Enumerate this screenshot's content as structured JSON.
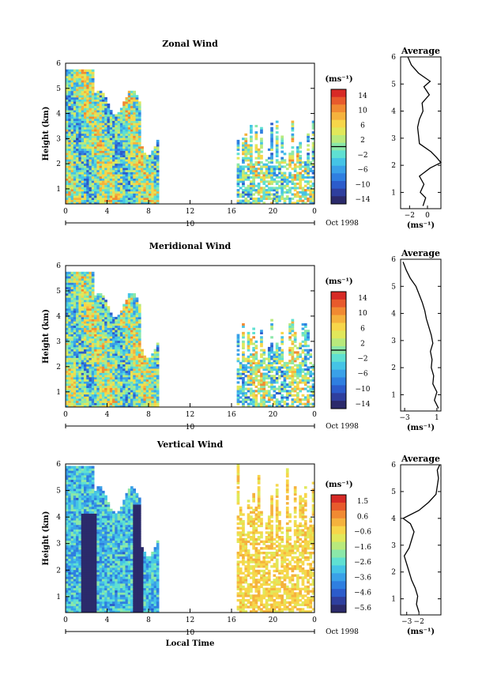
{
  "figure": {
    "date_label": "Oct 1998",
    "xlabel": "Local Time"
  },
  "chart_data": [
    {
      "type": "heatmap",
      "title": "Zonal Wind",
      "ylabel": "Height (km)",
      "xlabel": "",
      "x_ticks": [
        "0",
        "4",
        "8",
        "12",
        "16",
        "20",
        "0"
      ],
      "x_range": [
        0,
        24
      ],
      "y_ticks": [
        "1",
        "2",
        "3",
        "4",
        "5",
        "6"
      ],
      "y_range": [
        0.4,
        6.0
      ],
      "day_label": "10",
      "colorbar": {
        "unit": "(ms⁻¹)",
        "ticks": [
          "14",
          "10",
          "6",
          "2",
          "−2",
          "−6",
          "−10",
          "−14"
        ],
        "range": [
          -16,
          16
        ],
        "zero_line": 0
      },
      "data_windows": [
        {
          "x": [
            0,
            9
          ],
          "y": [
            0.4,
            5.8
          ]
        },
        {
          "x": [
            16.5,
            24
          ],
          "y": [
            0.4,
            3.7
          ]
        }
      ],
      "profile": {
        "title": "Average",
        "xlabel": "(ms⁻¹)",
        "x_ticks": [
          "−2",
          "0"
        ],
        "x_range": [
          -3,
          1.5
        ],
        "heights": [
          0.5,
          0.8,
          1.0,
          1.3,
          1.6,
          1.9,
          2.1,
          2.3,
          2.5,
          2.8,
          3.1,
          3.4,
          3.7,
          4.0,
          4.3,
          4.6,
          4.9,
          5.1,
          5.4,
          5.7,
          6.0
        ],
        "values": [
          -0.5,
          -0.2,
          -0.8,
          -0.4,
          -0.9,
          0.3,
          1.5,
          1.0,
          0.4,
          -0.9,
          -1.0,
          -1.1,
          -0.9,
          -0.5,
          -0.6,
          0.2,
          -0.4,
          0.3,
          -1.0,
          -1.8,
          -2.2
        ]
      }
    },
    {
      "type": "heatmap",
      "title": "Meridional Wind",
      "ylabel": "Height (km)",
      "xlabel": "",
      "x_ticks": [
        "0",
        "4",
        "8",
        "12",
        "16",
        "20",
        "0"
      ],
      "x_range": [
        0,
        24
      ],
      "y_ticks": [
        "1",
        "2",
        "3",
        "4",
        "5",
        "6"
      ],
      "y_range": [
        0.4,
        6.0
      ],
      "day_label": "10",
      "colorbar": {
        "unit": "(ms⁻¹)",
        "ticks": [
          "14",
          "10",
          "6",
          "2",
          "−2",
          "−6",
          "−10",
          "−14"
        ],
        "range": [
          -16,
          16
        ],
        "zero_line": 0
      },
      "data_windows": [
        {
          "x": [
            0,
            9
          ],
          "y": [
            0.4,
            5.8
          ]
        },
        {
          "x": [
            16.5,
            24
          ],
          "y": [
            0.4,
            4.0
          ]
        }
      ],
      "profile": {
        "title": "Average",
        "xlabel": "(ms⁻¹)",
        "x_ticks": [
          "−3",
          "1"
        ],
        "x_range": [
          -3.5,
          1.5
        ],
        "heights": [
          0.5,
          0.8,
          1.1,
          1.4,
          1.7,
          2.0,
          2.3,
          2.6,
          2.9,
          3.2,
          3.5,
          3.8,
          4.1,
          4.4,
          4.7,
          5.0,
          5.3,
          5.6,
          5.9
        ],
        "values": [
          1.2,
          0.7,
          1.0,
          0.5,
          0.6,
          0.3,
          0.4,
          0.2,
          0.5,
          0.3,
          0.0,
          -0.3,
          -0.5,
          -0.8,
          -1.2,
          -1.6,
          -2.3,
          -2.8,
          -3.2
        ]
      }
    },
    {
      "type": "heatmap",
      "title": "Vertical Wind",
      "ylabel": "Height (km)",
      "xlabel": "Local Time",
      "x_ticks": [
        "0",
        "4",
        "8",
        "12",
        "16",
        "20",
        "0"
      ],
      "x_range": [
        0,
        24
      ],
      "y_ticks": [
        "1",
        "2",
        "3",
        "4",
        "5",
        "6"
      ],
      "y_range": [
        0.4,
        6.0
      ],
      "day_label": "10",
      "colorbar": {
        "unit": "(ms⁻¹)",
        "ticks": [
          "1.5",
          "0.6",
          "−0.6",
          "−1.6",
          "−2.6",
          "−3.6",
          "−4.6",
          "−5.6"
        ],
        "range": [
          -6.0,
          2.0
        ]
      },
      "data_windows": [
        {
          "x": [
            0,
            9
          ],
          "y": [
            0.4,
            6.0
          ]
        },
        {
          "x": [
            16.5,
            24
          ],
          "y": [
            0.4,
            6.0
          ]
        }
      ],
      "profile": {
        "title": "Average",
        "xlabel": "(ms⁻¹)",
        "x_ticks": [
          "−3",
          "−2"
        ],
        "x_range": [
          -3.5,
          -0.2
        ],
        "heights": [
          0.5,
          0.8,
          1.1,
          1.4,
          1.7,
          2.0,
          2.3,
          2.6,
          2.9,
          3.2,
          3.5,
          3.8,
          4.0,
          4.3,
          4.6,
          4.9,
          5.2,
          5.5,
          5.8,
          6.0
        ],
        "values": [
          -2.0,
          -2.2,
          -2.1,
          -2.3,
          -2.6,
          -2.8,
          -3.0,
          -3.2,
          -2.8,
          -2.6,
          -2.4,
          -2.7,
          -3.3,
          -2.0,
          -1.2,
          -0.6,
          -0.5,
          -0.4,
          -0.5,
          -0.3
        ]
      }
    }
  ]
}
